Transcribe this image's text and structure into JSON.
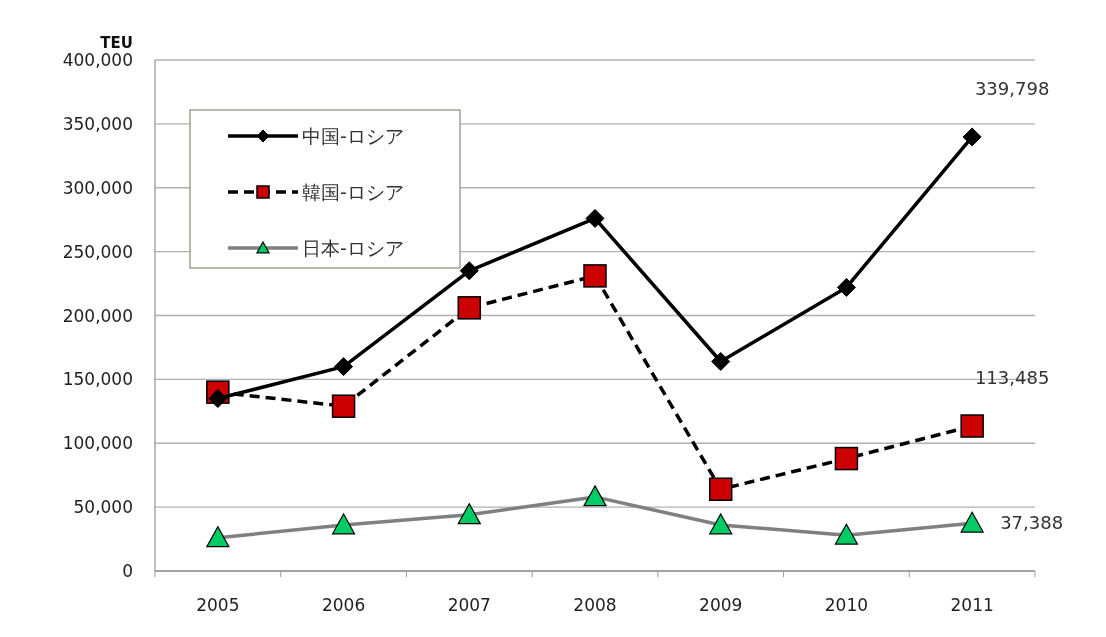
{
  "chart_data": {
    "type": "line",
    "ylabel": "TEU",
    "categories": [
      "2005",
      "2006",
      "2007",
      "2008",
      "2009",
      "2010",
      "2011"
    ],
    "series": [
      {
        "name": "中国-ロシア",
        "color": "#000000",
        "marker": "diamond",
        "line_style": "solid",
        "values": [
          135000,
          160000,
          235000,
          276000,
          164000,
          222000,
          339798
        ],
        "value_labels": [
          null,
          null,
          null,
          null,
          null,
          null,
          "339,798"
        ]
      },
      {
        "name": "韓国-ロシア",
        "color": "#cc0000",
        "marker": "square",
        "line_style": "dashed",
        "values": [
          140000,
          129000,
          206000,
          231000,
          64000,
          88000,
          113485
        ],
        "value_labels": [
          null,
          null,
          null,
          null,
          null,
          null,
          "113,485"
        ]
      },
      {
        "name": "日本-ロシア",
        "color": "#00cc66",
        "marker": "triangle",
        "line_style": "solid",
        "values": [
          26000,
          36000,
          44000,
          58000,
          36000,
          28000,
          37388
        ],
        "value_labels": [
          null,
          null,
          null,
          null,
          null,
          null,
          "37,388"
        ]
      }
    ],
    "ylim": [
      0,
      400000
    ],
    "yticks": [
      {
        "value": 0,
        "label": "0"
      },
      {
        "value": 50000,
        "label": "50,000"
      },
      {
        "value": 100000,
        "label": "100,000"
      },
      {
        "value": 150000,
        "label": "150,000"
      },
      {
        "value": 200000,
        "label": "200,000"
      },
      {
        "value": 250000,
        "label": "250,000"
      },
      {
        "value": 300000,
        "label": "300,000"
      },
      {
        "value": 350000,
        "label": "350,000"
      },
      {
        "value": 400000,
        "label": "400,000"
      }
    ],
    "grid": "y",
    "legend": "top left"
  }
}
